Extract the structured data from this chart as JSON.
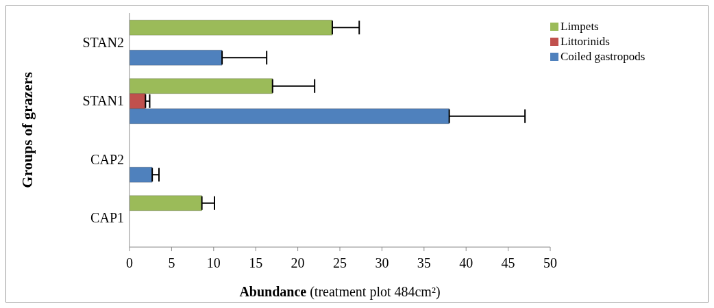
{
  "chart_data": {
    "type": "bar",
    "orientation": "horizontal",
    "xlabel": "Abundance (treatment plot 484cm²)",
    "ylabel": "Groups of grazers",
    "categories": [
      "STAN2",
      "STAN1",
      "CAP2",
      "CAP1"
    ],
    "series": [
      {
        "name": "Limpets",
        "color": "#9bbb59",
        "values": [
          24.1,
          17,
          null,
          8.6
        ],
        "errors": [
          [
            24.1,
            27.3
          ],
          [
            17,
            22
          ],
          null,
          [
            8.6,
            10.1
          ]
        ]
      },
      {
        "name": "Littorinids",
        "color": "#c0504d",
        "values": [
          null,
          1.9,
          null,
          null
        ],
        "errors": [
          null,
          [
            1.9,
            2.4
          ],
          null,
          null
        ]
      },
      {
        "name": "Coiled gastropods",
        "color": "#4f81bd",
        "values": [
          11,
          38,
          2.7,
          null
        ],
        "errors": [
          [
            11,
            16.3
          ],
          [
            38,
            47
          ],
          [
            2.7,
            3.5
          ],
          null
        ]
      }
    ],
    "xlim": [
      0,
      50
    ],
    "xticks": [
      0,
      5,
      10,
      15,
      20,
      25,
      30,
      35,
      40,
      45,
      50
    ],
    "legend": "right"
  }
}
